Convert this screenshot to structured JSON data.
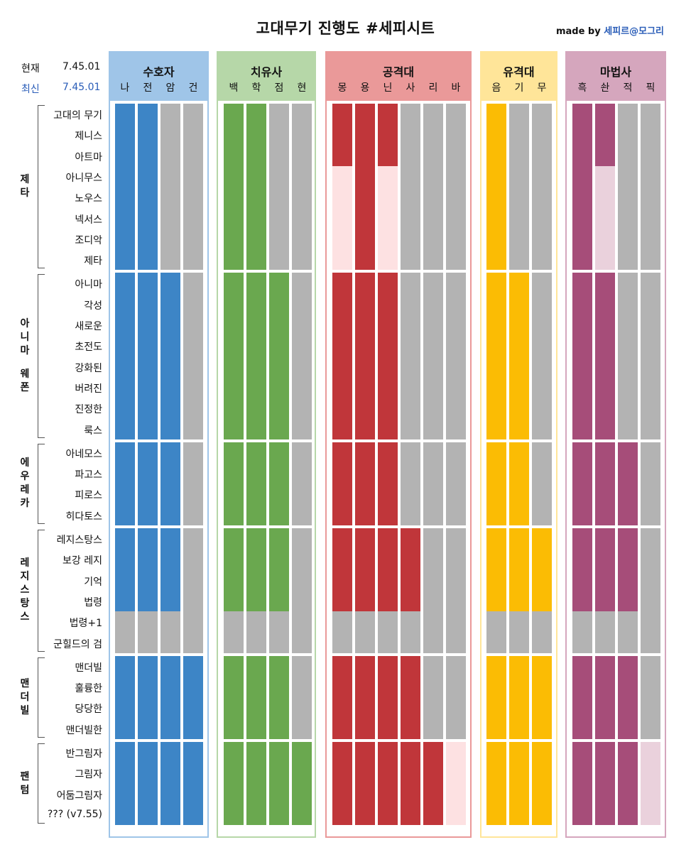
{
  "title": "고대무기 진행도 #세피시트",
  "credit": {
    "prefix": "made by ",
    "name": "세피르@모그리"
  },
  "version": {
    "current_label": "현재",
    "current_value": "7.45.01",
    "latest_label": "최신",
    "latest_value": "7.45.01"
  },
  "colors": {
    "filled": "darker series color",
    "empty": "#b3b3b3"
  },
  "groups": [
    {
      "name": "제타",
      "rows": [
        "고대의 무기",
        "제니스",
        "아트마",
        "아니무스",
        "노우스",
        "넥서스",
        "조디악",
        "제타"
      ]
    },
    {
      "name": "아니마 웨폰",
      "rows": [
        "아니마",
        "각성",
        "새로운",
        "초전도",
        "강화된",
        "버려진",
        "진정한",
        "룩스"
      ]
    },
    {
      "name": "에우레카",
      "rows": [
        "아네모스",
        "파고스",
        "피로스",
        "히다토스"
      ]
    },
    {
      "name": "레지스탕스",
      "rows": [
        "레지스탕스",
        "보강 레지",
        "기억",
        "법령",
        "법령+1",
        "군힐드의 검"
      ]
    },
    {
      "name": "맨더빌",
      "rows": [
        "맨더빌",
        "훌륭한",
        "당당한",
        "맨더빌한"
      ]
    },
    {
      "name": "팬텀",
      "rows": [
        "반그림자",
        "그림자",
        "어둠그림자",
        "??? (v7.55)"
      ]
    }
  ],
  "roles": [
    {
      "name": "수호자",
      "header_bg": "#9fc5e8",
      "border": "#9fc5e8",
      "fill": "#3d85c6",
      "empty_last": "#e8f3fd",
      "jobs": [
        {
          "label": "나",
          "levels": [
            8,
            8,
            8,
            4,
            6,
            4,
            1
          ]
        },
        {
          "label": "전",
          "levels": [
            8,
            8,
            8,
            4,
            6,
            4,
            2
          ]
        },
        {
          "label": "암",
          "levels": [
            0,
            8,
            8,
            4,
            6,
            4,
            0
          ]
        },
        {
          "label": "건",
          "levels": [
            0,
            0,
            0,
            0,
            6,
            4,
            0
          ]
        }
      ]
    },
    {
      "name": "치유사",
      "header_bg": "#b6d7a8",
      "border": "#b6d7a8",
      "fill": "#6aa84f",
      "empty_last": "#d9ead3",
      "jobs": [
        {
          "label": "백",
          "levels": [
            8,
            8,
            8,
            4,
            6,
            4,
            2
          ]
        },
        {
          "label": "학",
          "levels": [
            8,
            8,
            8,
            4,
            6,
            4,
            0
          ]
        },
        {
          "label": "점",
          "levels": [
            0,
            8,
            8,
            4,
            6,
            4,
            0
          ]
        },
        {
          "label": "현",
          "levels": [
            0,
            0,
            0,
            0,
            0,
            4,
            0
          ]
        }
      ]
    },
    {
      "name": "공격대",
      "header_bg": "#ea9999",
      "border": "#ea9999",
      "fill": "#c0363a",
      "empty_last": "#fde1e2",
      "jobs": [
        {
          "label": "몽",
          "levels": [
            3,
            8,
            8,
            4,
            6,
            4,
            0
          ]
        },
        {
          "label": "용",
          "levels": [
            8,
            8,
            8,
            4,
            6,
            4,
            0
          ]
        },
        {
          "label": "닌",
          "levels": [
            3,
            8,
            8,
            4,
            6,
            4,
            0
          ]
        },
        {
          "label": "사",
          "levels": [
            0,
            0,
            0,
            4,
            6,
            4,
            0
          ]
        },
        {
          "label": "리",
          "levels": [
            0,
            0,
            0,
            0,
            0,
            4,
            0
          ]
        },
        {
          "label": "바",
          "levels": [
            0,
            0,
            0,
            0,
            0,
            0,
            0
          ]
        }
      ]
    },
    {
      "name": "유격대",
      "header_bg": "#ffe599",
      "border": "#ffe599",
      "fill": "#fbbc04",
      "empty_last": "#fff2cc",
      "jobs": [
        {
          "label": "음",
          "levels": [
            8,
            8,
            8,
            4,
            6,
            4,
            0
          ]
        },
        {
          "label": "기",
          "levels": [
            0,
            8,
            8,
            4,
            6,
            4,
            2
          ]
        },
        {
          "label": "무",
          "levels": [
            0,
            0,
            0,
            4,
            6,
            4,
            0
          ]
        }
      ]
    },
    {
      "name": "마법사",
      "header_bg": "#d5a6bd",
      "border": "#d5a6bd",
      "fill": "#a64d79",
      "empty_last": "#ead1dc",
      "jobs": [
        {
          "label": "흑",
          "levels": [
            8,
            8,
            8,
            4,
            6,
            4,
            0
          ]
        },
        {
          "label": "솬",
          "levels": [
            3,
            8,
            8,
            4,
            6,
            4,
            0
          ]
        },
        {
          "label": "적",
          "levels": [
            0,
            0,
            8,
            4,
            6,
            4,
            0
          ]
        },
        {
          "label": "픽",
          "levels": [
            0,
            0,
            0,
            0,
            0,
            0,
            1
          ]
        }
      ]
    }
  ]
}
